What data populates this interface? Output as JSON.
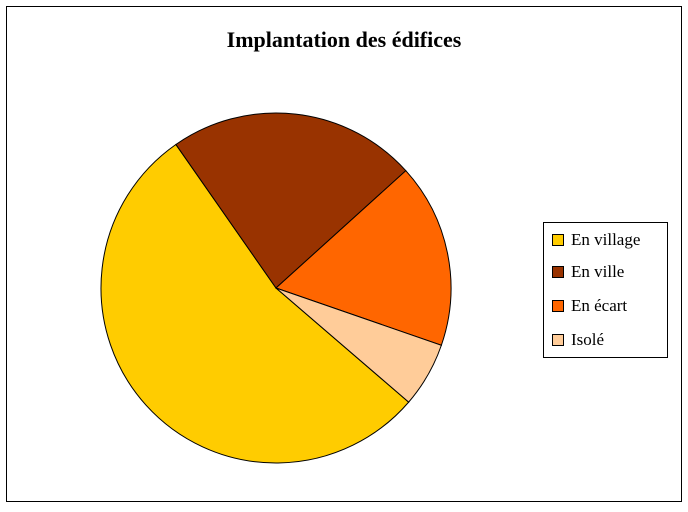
{
  "chart_data": {
    "type": "pie",
    "title": "Implantation des édifices",
    "categories": [
      "En village",
      "En ville",
      "En écart",
      "Isolé"
    ],
    "values": [
      54,
      23,
      17,
      6
    ],
    "colors": [
      "#ffcc00",
      "#993300",
      "#ff6600",
      "#ffcc99"
    ]
  }
}
